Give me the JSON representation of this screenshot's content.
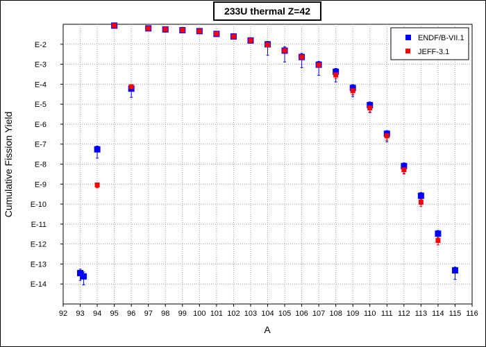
{
  "chart_data": {
    "type": "scatter",
    "title": "233U thermal Z=42",
    "xlabel": "A",
    "ylabel": "Cumulative Fission Yield",
    "x_scale": "linear",
    "y_scale": "log",
    "xlim": [
      92,
      116
    ],
    "ylim": [
      1e-15,
      0.1
    ],
    "x_ticks": [
      92,
      93,
      94,
      95,
      96,
      97,
      98,
      99,
      100,
      101,
      102,
      103,
      104,
      105,
      106,
      107,
      108,
      109,
      110,
      111,
      112,
      113,
      114,
      115,
      116
    ],
    "y_ticks": [
      {
        "value": 0.01,
        "label": "E-2"
      },
      {
        "value": 0.001,
        "label": "E-3"
      },
      {
        "value": 0.0001,
        "label": "E-4"
      },
      {
        "value": 1e-05,
        "label": "E-5"
      },
      {
        "value": 1e-06,
        "label": "E-6"
      },
      {
        "value": 1e-07,
        "label": "E-7"
      },
      {
        "value": 1e-08,
        "label": "E-8"
      },
      {
        "value": 1e-09,
        "label": "E-9"
      },
      {
        "value": 1e-10,
        "label": "E-10"
      },
      {
        "value": 1e-11,
        "label": "E-11"
      },
      {
        "value": 1e-12,
        "label": "E-12"
      },
      {
        "value": 1e-13,
        "label": "E-13"
      },
      {
        "value": 1e-14,
        "label": "E-14"
      }
    ],
    "grid": true,
    "legend_position": "top-right",
    "series": [
      {
        "name": "ENDF/B-VII.1",
        "color": "#0000ff",
        "marker": "square",
        "points": [
          {
            "x": 93,
            "y": 3.5e-14,
            "err_low": 1.5e-14,
            "err_high": 5.5e-14
          },
          {
            "x": 93.2,
            "y": 2.4e-14,
            "err_low": 9e-15,
            "err_high": 4e-14
          },
          {
            "x": 94,
            "y": 5.5e-08,
            "err_low": 2e-08,
            "err_high": 8e-08
          },
          {
            "x": 95,
            "y": 0.086,
            "err_low": 0.08,
            "err_high": 0.09
          },
          {
            "x": 96,
            "y": 6e-05,
            "err_low": 2.2e-05,
            "err_high": 9e-05
          },
          {
            "x": 97,
            "y": 0.0625,
            "err_low": 0.06,
            "err_high": 0.065
          },
          {
            "x": 98,
            "y": 0.0555,
            "err_low": 0.053,
            "err_high": 0.058
          },
          {
            "x": 99,
            "y": 0.0505,
            "err_low": 0.048,
            "err_high": 0.053
          },
          {
            "x": 100,
            "y": 0.0455,
            "err_low": 0.043,
            "err_high": 0.048
          },
          {
            "x": 101,
            "y": 0.033,
            "err_low": 0.031,
            "err_high": 0.035
          },
          {
            "x": 102,
            "y": 0.0245,
            "err_low": 0.022,
            "err_high": 0.027
          },
          {
            "x": 103,
            "y": 0.0155,
            "err_low": 0.013,
            "err_high": 0.018
          },
          {
            "x": 104,
            "y": 0.0099,
            "err_low": 0.0028,
            "err_high": 0.014
          },
          {
            "x": 105,
            "y": 0.0048,
            "err_low": 0.0013,
            "err_high": 0.0075
          },
          {
            "x": 106,
            "y": 0.0023,
            "err_low": 0.00068,
            "err_high": 0.0035
          },
          {
            "x": 107,
            "y": 0.00095,
            "err_low": 0.00028,
            "err_high": 0.0014
          },
          {
            "x": 108,
            "y": 0.00042,
            "err_low": 0.00013,
            "err_high": 0.00062
          },
          {
            "x": 109,
            "y": 6.5e-05,
            "err_low": 2.4e-05,
            "err_high": 9.5e-05
          },
          {
            "x": 110,
            "y": 9e-06,
            "err_low": 3.8e-06,
            "err_high": 1.3e-05
          },
          {
            "x": 111,
            "y": 3.3e-07,
            "err_low": 1.3e-07,
            "err_high": 4.8e-07
          },
          {
            "x": 112,
            "y": 8e-09,
            "err_low": 3.4e-09,
            "err_high": 1.15e-08
          },
          {
            "x": 113,
            "y": 2.6e-10,
            "err_low": 9.5e-11,
            "err_high": 3.8e-10
          },
          {
            "x": 114,
            "y": 3.3e-12,
            "err_low": 1.2e-12,
            "err_high": 4.8e-12
          },
          {
            "x": 115,
            "y": 4.8e-14,
            "err_low": 1.7e-14,
            "err_high": 7e-14
          }
        ]
      },
      {
        "name": "JEFF-3.1",
        "color": "#ff0000",
        "marker": "square",
        "points": [
          {
            "x": 94,
            "y": 9.1e-10,
            "err_low": 6.5e-10,
            "err_high": 1.15e-09
          },
          {
            "x": 95,
            "y": 0.086,
            "err_low": 0.083,
            "err_high": 0.089
          },
          {
            "x": 96,
            "y": 7.5e-05,
            "err_low": 5.5e-05,
            "err_high": 9.5e-05
          },
          {
            "x": 97,
            "y": 0.0625,
            "err_low": 0.06,
            "err_high": 0.065
          },
          {
            "x": 98,
            "y": 0.056,
            "err_low": 0.054,
            "err_high": 0.058
          },
          {
            "x": 99,
            "y": 0.0505,
            "err_low": 0.049,
            "err_high": 0.052
          },
          {
            "x": 100,
            "y": 0.0455,
            "err_low": 0.044,
            "err_high": 0.047
          },
          {
            "x": 101,
            "y": 0.033,
            "err_low": 0.032,
            "err_high": 0.034
          },
          {
            "x": 102,
            "y": 0.0245,
            "err_low": 0.023,
            "err_high": 0.026
          },
          {
            "x": 103,
            "y": 0.0155,
            "err_low": 0.014,
            "err_high": 0.017
          },
          {
            "x": 104,
            "y": 0.0095,
            "err_low": 0.0075,
            "err_high": 0.0115
          },
          {
            "x": 105,
            "y": 0.0048,
            "err_low": 0.0038,
            "err_high": 0.0058
          },
          {
            "x": 106,
            "y": 0.0023,
            "err_low": 0.0018,
            "err_high": 0.0028
          },
          {
            "x": 107,
            "y": 0.00092,
            "err_low": 0.00072,
            "err_high": 0.00112
          },
          {
            "x": 108,
            "y": 0.00029,
            "err_low": 0.00019,
            "err_high": 0.00039
          },
          {
            "x": 109,
            "y": 4.7e-05,
            "err_low": 3e-05,
            "err_high": 6.4e-05
          },
          {
            "x": 110,
            "y": 6.5e-06,
            "err_low": 4.1e-06,
            "err_high": 8.9e-06
          },
          {
            "x": 111,
            "y": 2.6e-07,
            "err_low": 1.55e-07,
            "err_high": 3.6e-07
          },
          {
            "x": 112,
            "y": 5.2e-09,
            "err_low": 3.2e-09,
            "err_high": 7.2e-09
          },
          {
            "x": 113,
            "y": 1.25e-10,
            "err_low": 7.5e-11,
            "err_high": 1.75e-10
          },
          {
            "x": 114,
            "y": 1.5e-12,
            "err_low": 9e-13,
            "err_high": 2.1e-12
          }
        ]
      }
    ]
  }
}
